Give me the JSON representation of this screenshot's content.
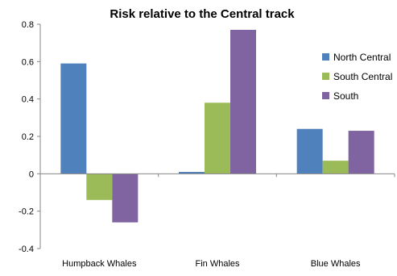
{
  "chart_data": {
    "type": "bar",
    "title": "Risk relative to the Central track",
    "xlabel": "",
    "ylabel": "",
    "categories": [
      "Humpback Whales",
      "Fin Whales",
      "Blue Whales"
    ],
    "series": [
      {
        "name": "North Central",
        "color": "#4F81BD",
        "values": [
          0.59,
          0.01,
          0.24
        ]
      },
      {
        "name": "South Central",
        "color": "#9BBB59",
        "values": [
          -0.14,
          0.38,
          0.07
        ]
      },
      {
        "name": "South",
        "color": "#8064A2",
        "values": [
          -0.26,
          0.77,
          0.23
        ]
      }
    ],
    "ylim": [
      -0.4,
      0.8
    ],
    "yticks": [
      -0.4,
      -0.2,
      0,
      0.2,
      0.4,
      0.6,
      0.8
    ],
    "ytick_labels": [
      "-0.4",
      "-0.2",
      "0",
      "0.2",
      "0.4",
      "0.6",
      "0.8"
    ],
    "grid": false,
    "legend_position": "right"
  }
}
